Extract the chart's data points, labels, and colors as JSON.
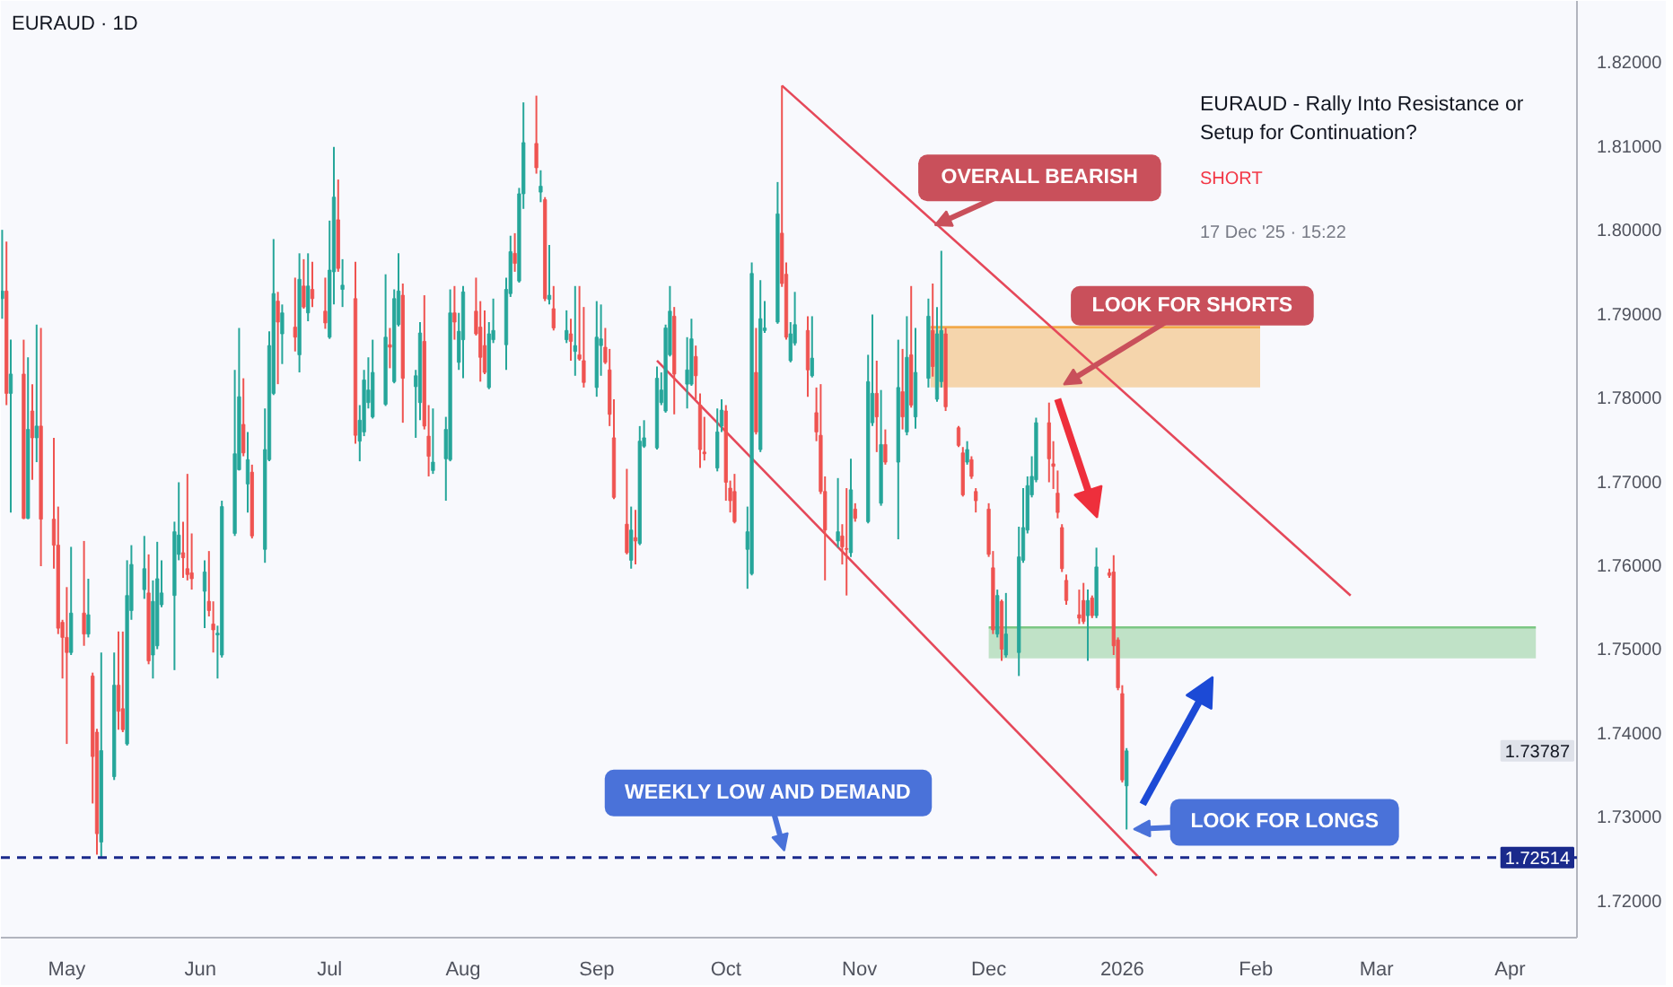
{
  "chart_data": {
    "type": "candlestick",
    "title": "EURAUD · 1D",
    "xlim": [
      "2025-04-15T17:00",
      "2026-04-16T13:00"
    ],
    "ylim": [
      1.7156,
      1.8273
    ],
    "xticks": [
      {
        "value": "2025-05-01",
        "label": "May"
      },
      {
        "value": "2025-06-01",
        "label": "Jun"
      },
      {
        "value": "2025-07-01",
        "label": "Jul"
      },
      {
        "value": "2025-08-01",
        "label": "Aug"
      },
      {
        "value": "2025-09-01",
        "label": "Sep"
      },
      {
        "value": "2025-10-01",
        "label": "Oct"
      },
      {
        "value": "2025-11-01",
        "label": "Nov"
      },
      {
        "value": "2025-12-01",
        "label": "Dec"
      },
      {
        "value": "2026-01-01",
        "label": "2026"
      },
      {
        "value": "2026-02-01",
        "label": "Feb"
      },
      {
        "value": "2026-03-01",
        "label": "Mar"
      },
      {
        "value": "2026-04-01",
        "label": "Apr"
      }
    ],
    "yticks": [
      {
        "value": 1.72,
        "label": "1.72000"
      },
      {
        "value": 1.73,
        "label": "1.73000"
      },
      {
        "value": 1.74,
        "label": "1.74000"
      },
      {
        "value": 1.75,
        "label": "1.75000"
      },
      {
        "value": 1.76,
        "label": "1.76000"
      },
      {
        "value": 1.77,
        "label": "1.77000"
      },
      {
        "value": 1.78,
        "label": "1.78000"
      },
      {
        "value": 1.79,
        "label": "1.79000"
      },
      {
        "value": 1.8,
        "label": "1.80000"
      },
      {
        "value": 1.81,
        "label": "1.81000"
      },
      {
        "value": 1.82,
        "label": "1.82000"
      }
    ],
    "grid": false,
    "series": [
      {
        "type": "line",
        "x": [
          "2025-11-17T12:00",
          "2026-02-02"
        ],
        "values": [
          1.7884,
          1.7884
        ],
        "upper": [
          1.7884,
          1.7884
        ],
        "lower": [
          1.7812,
          1.7812
        ],
        "color": "#f2a94a"
      },
      {
        "type": "line",
        "x": [
          "2025-12-01",
          "2026-04-07"
        ],
        "values": [
          1.7526,
          1.7526
        ],
        "upper": [
          1.7526,
          1.7526
        ],
        "lower": [
          1.7489,
          1.7489
        ],
        "color": "#7cc784"
      },
      {
        "type": "line",
        "x": [
          "2025-10-14",
          "2026-02-23"
        ],
        "values": [
          1.8172,
          1.7564
        ],
        "color": "#e5485a"
      },
      {
        "type": "line",
        "x": [
          "2025-09-15",
          "2026-01-09"
        ],
        "values": [
          1.7844,
          1.723
        ],
        "color": "#e5485a"
      },
      {
        "x": [
          "2025-04-16",
          "2025-04-17",
          "2025-04-18",
          "2025-04-21",
          "2025-04-22",
          "2025-04-23",
          "2025-04-24",
          "2025-04-25",
          "2025-04-28",
          "2025-04-29",
          "2025-04-30",
          "2025-05-01",
          "2025-05-02",
          "2025-05-05",
          "2025-05-06",
          "2025-05-07",
          "2025-05-08",
          "2025-05-09",
          "2025-05-12",
          "2025-05-13",
          "2025-05-14",
          "2025-05-15",
          "2025-05-16",
          "2025-05-19",
          "2025-05-20",
          "2025-05-21",
          "2025-05-22",
          "2025-05-23",
          "2025-05-26",
          "2025-05-27",
          "2025-05-28",
          "2025-05-29",
          "2025-05-30",
          "2025-06-02",
          "2025-06-03",
          "2025-06-04",
          "2025-06-05",
          "2025-06-06",
          "2025-06-09",
          "2025-06-10",
          "2025-06-11",
          "2025-06-12",
          "2025-06-13",
          "2025-06-16",
          "2025-06-17",
          "2025-06-18",
          "2025-06-19",
          "2025-06-20",
          "2025-06-23",
          "2025-06-24",
          "2025-06-25",
          "2025-06-26",
          "2025-06-27",
          "2025-06-30",
          "2025-07-01",
          "2025-07-02",
          "2025-07-03",
          "2025-07-04",
          "2025-07-07",
          "2025-07-08",
          "2025-07-09",
          "2025-07-10",
          "2025-07-11",
          "2025-07-14",
          "2025-07-15",
          "2025-07-16",
          "2025-07-17",
          "2025-07-18",
          "2025-07-21",
          "2025-07-22",
          "2025-07-23",
          "2025-07-24",
          "2025-07-25",
          "2025-07-28",
          "2025-07-29",
          "2025-07-30",
          "2025-07-31",
          "2025-08-01",
          "2025-08-04",
          "2025-08-05",
          "2025-08-06",
          "2025-08-07",
          "2025-08-08",
          "2025-08-11",
          "2025-08-12",
          "2025-08-13",
          "2025-08-14",
          "2025-08-15",
          "2025-08-18",
          "2025-08-19",
          "2025-08-20",
          "2025-08-21",
          "2025-08-22",
          "2025-08-25",
          "2025-08-26",
          "2025-08-27",
          "2025-08-28",
          "2025-08-29",
          "2025-09-01",
          "2025-09-02",
          "2025-09-03",
          "2025-09-04",
          "2025-09-05",
          "2025-09-08",
          "2025-09-09",
          "2025-09-10",
          "2025-09-11",
          "2025-09-12",
          "2025-09-15",
          "2025-09-16",
          "2025-09-17",
          "2025-09-18",
          "2025-09-19",
          "2025-09-22",
          "2025-09-23",
          "2025-09-24",
          "2025-09-25",
          "2025-09-26",
          "2025-09-29",
          "2025-09-30",
          "2025-10-01",
          "2025-10-02",
          "2025-10-03",
          "2025-10-06",
          "2025-10-07",
          "2025-10-08",
          "2025-10-09",
          "2025-10-10",
          "2025-10-13",
          "2025-10-14",
          "2025-10-15",
          "2025-10-16",
          "2025-10-17",
          "2025-10-20",
          "2025-10-21",
          "2025-10-22",
          "2025-10-23",
          "2025-10-24",
          "2025-10-27",
          "2025-10-28",
          "2025-10-29",
          "2025-10-30",
          "2025-10-31",
          "2025-11-03",
          "2025-11-04",
          "2025-11-05",
          "2025-11-06",
          "2025-11-07",
          "2025-11-10",
          "2025-11-11",
          "2025-11-12",
          "2025-11-13",
          "2025-11-14",
          "2025-11-17",
          "2025-11-18",
          "2025-11-19",
          "2025-11-20",
          "2025-11-21",
          "2025-11-24",
          "2025-11-25",
          "2025-11-26",
          "2025-11-27",
          "2025-11-28",
          "2025-12-01",
          "2025-12-02",
          "2025-12-03",
          "2025-12-04",
          "2025-12-05",
          "2025-12-08",
          "2025-12-09",
          "2025-12-10",
          "2025-12-11",
          "2025-12-12",
          "2025-12-15",
          "2025-12-16",
          "2025-12-17",
          "2025-12-18",
          "2025-12-19",
          "2025-12-22",
          "2025-12-23",
          "2025-12-24",
          "2025-12-25",
          "2025-12-26",
          "2025-12-29",
          "2025-12-30",
          "2025-12-31",
          "2026-01-01",
          "2026-01-02"
        ],
        "ohlc": [
          [
            1.7918,
            1.8,
            1.7894,
            1.7927
          ],
          [
            1.7927,
            1.7986,
            1.7791,
            1.7805
          ],
          [
            1.7805,
            1.7869,
            1.7663,
            1.7828
          ],
          [
            1.7828,
            1.7869,
            1.7655,
            1.7656
          ],
          [
            1.7656,
            1.7848,
            1.7655,
            1.7762
          ],
          [
            1.7784,
            1.7816,
            1.7702,
            1.7752
          ],
          [
            1.7752,
            1.7887,
            1.7723,
            1.7766
          ],
          [
            1.7766,
            1.7883,
            1.7599,
            1.7655
          ],
          [
            1.7655,
            1.7752,
            1.7596,
            1.7624
          ],
          [
            1.7624,
            1.767,
            1.7518,
            1.7525
          ],
          [
            1.7532,
            1.7535,
            1.7465,
            1.7514
          ],
          [
            1.7514,
            1.7574,
            1.7387,
            1.7496
          ],
          [
            1.7496,
            1.7622,
            1.7493,
            1.7543
          ],
          [
            1.7543,
            1.7629,
            1.7504,
            1.7518
          ],
          [
            1.7518,
            1.7584,
            1.7514,
            1.7541
          ],
          [
            1.7468,
            1.7472,
            1.7316,
            1.7372
          ],
          [
            1.7401,
            1.7405,
            1.7255,
            1.728
          ],
          [
            1.727,
            1.7496,
            1.72514,
            1.7379
          ],
          [
            1.7348,
            1.7496,
            1.7344,
            1.7457
          ],
          [
            1.7457,
            1.7521,
            1.7404,
            1.7426
          ],
          [
            1.7429,
            1.7521,
            1.7401,
            1.7404
          ],
          [
            1.7387,
            1.7606,
            1.7385,
            1.7564
          ],
          [
            1.7546,
            1.7624,
            1.7535,
            1.7601
          ],
          [
            1.7571,
            1.7635,
            1.756,
            1.7596
          ],
          [
            1.7567,
            1.7613,
            1.7482,
            1.7486
          ],
          [
            1.7493,
            1.7582,
            1.7465,
            1.7557
          ],
          [
            1.7504,
            1.7628,
            1.75,
            1.7584
          ],
          [
            1.7553,
            1.7606,
            1.755,
            1.7567
          ],
          [
            1.7564,
            1.7652,
            1.7475,
            1.764
          ],
          [
            1.7613,
            1.7699,
            1.7606,
            1.7636
          ],
          [
            1.7615,
            1.7652,
            1.7585,
            1.7609
          ],
          [
            1.7596,
            1.7709,
            1.7582,
            1.7589
          ],
          [
            1.7591,
            1.7638,
            1.7571,
            1.7584
          ],
          [
            1.7569,
            1.7606,
            1.7525,
            1.7592
          ],
          [
            1.7557,
            1.7617,
            1.7539,
            1.7546
          ],
          [
            1.753,
            1.7557,
            1.7496,
            1.7523
          ],
          [
            1.7517,
            1.7528,
            1.7465,
            1.7519
          ],
          [
            1.7493,
            1.7677,
            1.749,
            1.767
          ],
          [
            1.7638,
            1.7833,
            1.7635,
            1.7733
          ],
          [
            1.7714,
            1.7883,
            1.7713,
            1.7801
          ],
          [
            1.7768,
            1.7823,
            1.773,
            1.7734
          ],
          [
            1.7697,
            1.7759,
            1.7663,
            1.7726
          ],
          [
            1.7711,
            1.772,
            1.7632,
            1.7635
          ],
          [
            1.7619,
            1.7787,
            1.7603,
            1.7738
          ],
          [
            1.7726,
            1.7879,
            1.7724,
            1.7862
          ],
          [
            1.7805,
            1.7989,
            1.7803,
            1.7924
          ],
          [
            1.7915,
            1.7926,
            1.7816,
            1.789
          ],
          [
            1.7876,
            1.7911,
            1.784,
            1.7901
          ],
          [
            1.7884,
            1.7943,
            1.7855,
            1.7872
          ],
          [
            1.7851,
            1.7972,
            1.783,
            1.7941
          ],
          [
            1.7933,
            1.7965,
            1.7906,
            1.7908
          ],
          [
            1.7901,
            1.7972,
            1.7891,
            1.7933
          ],
          [
            1.7929,
            1.7962,
            1.7908,
            1.7918
          ],
          [
            1.7903,
            1.7943,
            1.7882,
            1.7889
          ],
          [
            1.7872,
            1.8011,
            1.787,
            1.7952
          ],
          [
            1.795,
            1.8099,
            1.7911,
            1.8039
          ],
          [
            1.8012,
            1.806,
            1.795,
            1.7954
          ],
          [
            1.7929,
            1.7965,
            1.7908,
            1.7934
          ],
          [
            1.7918,
            1.7962,
            1.7745,
            1.7755
          ],
          [
            1.7748,
            1.7791,
            1.7724,
            1.7773
          ],
          [
            1.7759,
            1.7833,
            1.7754,
            1.7821
          ],
          [
            1.7794,
            1.7848,
            1.7787,
            1.7809
          ],
          [
            1.7777,
            1.7869,
            1.7775,
            1.783
          ],
          [
            1.7792,
            1.7947,
            1.779,
            1.7872
          ],
          [
            1.7863,
            1.7883,
            1.7835,
            1.786
          ],
          [
            1.7819,
            1.7929,
            1.7817,
            1.7918
          ],
          [
            1.7887,
            1.7972,
            1.7885,
            1.7927
          ],
          [
            1.7922,
            1.7936,
            1.777,
            1.7823
          ],
          [
            1.7813,
            1.7833,
            1.7752,
            1.7826
          ],
          [
            1.7794,
            1.789,
            1.7773,
            1.7877
          ],
          [
            1.7867,
            1.7922,
            1.7762,
            1.7766
          ],
          [
            1.7754,
            1.7791,
            1.7706,
            1.773
          ],
          [
            1.7713,
            1.7787,
            1.7709,
            1.7723
          ],
          [
            1.7727,
            1.7777,
            1.7677,
            1.7762
          ],
          [
            1.7726,
            1.7929,
            1.7724,
            1.7901
          ],
          [
            1.7901,
            1.7933,
            1.7869,
            1.789
          ],
          [
            1.7842,
            1.7901,
            1.7833,
            1.7879
          ],
          [
            1.7869,
            1.7933,
            1.7823,
            1.7926
          ],
          [
            1.7903,
            1.7943,
            1.7874,
            1.7876
          ],
          [
            1.7884,
            1.7915,
            1.7819,
            1.7848
          ],
          [
            1.7862,
            1.7904,
            1.7828,
            1.783
          ],
          [
            1.7812,
            1.789,
            1.781,
            1.7876
          ],
          [
            1.7869,
            1.7918,
            1.7865,
            1.788
          ],
          [
            1.7863,
            1.7943,
            1.7833,
            1.7929
          ],
          [
            1.7924,
            1.7993,
            1.792,
            1.7974
          ],
          [
            1.7972,
            1.7996,
            1.795,
            1.796
          ],
          [
            1.7939,
            1.805,
            1.7937,
            1.8043
          ],
          [
            1.8043,
            1.8152,
            1.8025,
            1.8104
          ],
          [
            1.8103,
            1.816,
            1.8067,
            1.8074
          ],
          [
            1.8045,
            1.8071,
            1.8033,
            1.8052
          ],
          [
            1.8036,
            1.8039,
            1.7915,
            1.7918
          ],
          [
            1.7917,
            1.7982,
            1.7911,
            1.7922
          ],
          [
            1.7906,
            1.7933,
            1.788,
            1.7883
          ],
          [
            1.7869,
            1.7904,
            1.7865,
            1.788
          ],
          [
            1.7876,
            1.7894,
            1.7844,
            1.7867
          ],
          [
            1.7855,
            1.7933,
            1.7826,
            1.7862
          ],
          [
            1.7851,
            1.7933,
            1.7844,
            1.7846
          ],
          [
            1.7844,
            1.7908,
            1.7812,
            1.7818
          ],
          [
            1.7812,
            1.7915,
            1.7801,
            1.7872
          ],
          [
            1.7862,
            1.7911,
            1.7826,
            1.787
          ],
          [
            1.786,
            1.7883,
            1.784,
            1.7842
          ],
          [
            1.7833,
            1.7858,
            1.7766,
            1.778
          ],
          [
            1.7752,
            1.7798,
            1.7679,
            1.7681
          ],
          [
            1.7649,
            1.7715,
            1.7613,
            1.7615
          ],
          [
            1.7606,
            1.767,
            1.7596,
            1.7642
          ],
          [
            1.7633,
            1.7666,
            1.7601,
            1.7629
          ],
          [
            1.7626,
            1.7766,
            1.7624,
            1.7748
          ],
          [
            1.7742,
            1.7773,
            1.774,
            1.7752
          ],
          [
            1.774,
            1.7837,
            1.7738,
            1.7823
          ],
          [
            1.7794,
            1.783,
            1.7791,
            1.7809
          ],
          [
            1.7784,
            1.7887,
            1.7782,
            1.7883
          ],
          [
            1.7851,
            1.7933,
            1.7849,
            1.7903
          ],
          [
            1.7897,
            1.7908,
            1.778,
            1.7828
          ],
          [
            1.7816,
            1.7872,
            1.7787,
            1.7833
          ],
          [
            1.7816,
            1.7894,
            1.7814,
            1.787
          ],
          [
            1.7849,
            1.7862,
            1.7798,
            1.7826
          ],
          [
            1.7791,
            1.7805,
            1.7716,
            1.7738
          ],
          [
            1.7735,
            1.7777,
            1.7725,
            1.7733
          ],
          [
            1.7716,
            1.7787,
            1.7712,
            1.7759
          ],
          [
            1.7766,
            1.7798,
            1.7759,
            1.7785
          ],
          [
            1.7784,
            1.7791,
            1.7677,
            1.7699
          ],
          [
            1.7692,
            1.7701,
            1.7663,
            1.7677
          ],
          [
            1.7688,
            1.7709,
            1.765,
            1.7652
          ],
          [
            1.7619,
            1.767,
            1.7572,
            1.764
          ],
          [
            1.759,
            1.7961,
            1.7588,
            1.7948
          ],
          [
            1.783,
            1.7883,
            1.7756,
            1.7759
          ],
          [
            1.7738,
            1.794,
            1.7735,
            1.7894
          ],
          [
            1.788,
            1.7915,
            1.7877,
            1.7883
          ],
          [
            1.789,
            1.8057,
            1.7888,
            1.8019
          ],
          [
            1.7996,
            1.8172,
            1.7932,
            1.7936
          ],
          [
            1.7947,
            1.7961,
            1.7869,
            1.7872
          ],
          [
            1.7844,
            1.789,
            1.7842,
            1.7876
          ],
          [
            1.7865,
            1.7926,
            1.7862,
            1.7887
          ],
          [
            1.788,
            1.7897,
            1.7801,
            1.7833
          ],
          [
            1.7826,
            1.7897,
            1.7824,
            1.7847
          ],
          [
            1.7782,
            1.7812,
            1.7748,
            1.7759
          ],
          [
            1.7755,
            1.7816,
            1.7685,
            1.7688
          ],
          [
            1.7688,
            1.7706,
            1.7582,
            1.7642
          ],
          [
            1.7629,
            1.7704,
            1.7621,
            1.764
          ],
          [
            1.7635,
            1.7649,
            1.7601,
            1.7622
          ],
          [
            1.762,
            1.7692,
            1.7564,
            1.7619
          ],
          [
            1.7615,
            1.7727,
            1.761,
            1.769
          ],
          [
            1.7667,
            1.7674,
            1.7652,
            1.7656
          ],
          [
            1.7652,
            1.7851,
            1.765,
            1.7819
          ],
          [
            1.777,
            1.7899,
            1.7766,
            1.7805
          ],
          [
            1.7805,
            1.7844,
            1.7735,
            1.7777
          ],
          [
            1.7674,
            1.7809,
            1.7671,
            1.7744
          ],
          [
            1.7744,
            1.7762,
            1.772,
            1.7723
          ],
          [
            1.7723,
            1.7869,
            1.7631,
            1.7812
          ],
          [
            1.7807,
            1.7858,
            1.7762,
            1.7777
          ],
          [
            1.7759,
            1.7897,
            1.7755,
            1.7848
          ],
          [
            1.7851,
            1.7933,
            1.7788,
            1.7791
          ],
          [
            1.7777,
            1.7883,
            1.7763,
            1.783
          ],
          [
            1.7823,
            1.7918,
            1.7812,
            1.7897
          ],
          [
            1.788,
            1.7936,
            1.7825,
            1.7837
          ],
          [
            1.7798,
            1.7908,
            1.7795,
            1.7876
          ],
          [
            1.7819,
            1.7975,
            1.7812,
            1.788
          ],
          [
            1.7876,
            1.7883,
            1.7784,
            1.7789
          ],
          [
            1.7764,
            1.7766,
            1.7741,
            1.7743
          ],
          [
            1.7734,
            1.7741,
            1.7682,
            1.7684
          ],
          [
            1.7723,
            1.7748,
            1.772,
            1.7738
          ],
          [
            1.7726,
            1.773,
            1.7703,
            1.7706
          ],
          [
            1.7688,
            1.7692,
            1.7663,
            1.7677
          ],
          [
            1.7667,
            1.7674,
            1.761,
            1.7613
          ],
          [
            1.7597,
            1.7617,
            1.7518,
            1.7523
          ],
          [
            1.7518,
            1.7571,
            1.7514,
            1.7564
          ],
          [
            1.7557,
            1.7559,
            1.7486,
            1.75
          ],
          [
            1.7493,
            1.7567,
            1.749,
            1.7518
          ],
          [
            1.7496,
            1.7646,
            1.7468,
            1.761
          ],
          [
            1.7606,
            1.7692,
            1.7603,
            1.7645
          ],
          [
            1.7642,
            1.7706,
            1.7638,
            1.7695
          ],
          [
            1.7684,
            1.773,
            1.7681,
            1.7706
          ],
          [
            1.7702,
            1.7776,
            1.7699,
            1.777
          ],
          [
            1.777,
            1.7794,
            1.7699,
            1.7727
          ],
          [
            1.7721,
            1.7748,
            1.7691,
            1.7718
          ],
          [
            1.7686,
            1.7713,
            1.7656,
            1.7663
          ],
          [
            1.7645,
            1.7649,
            1.7592,
            1.7596
          ],
          [
            1.7582,
            1.7589,
            1.7553,
            1.7558
          ],
          [
            1.7541,
            1.7571,
            1.753,
            1.7537
          ],
          [
            1.7558,
            1.7579,
            1.753,
            1.7533
          ],
          [
            1.754,
            1.7571,
            1.7486,
            1.7558
          ],
          [
            1.7561,
            1.7564,
            1.7537,
            1.754
          ],
          [
            1.754,
            1.7621,
            1.7537,
            1.7598
          ],
          [
            1.7591,
            1.7596,
            1.7585,
            1.7588
          ],
          [
            1.7592,
            1.7612,
            1.7493,
            1.7504
          ],
          [
            1.7511,
            1.7514,
            1.7451,
            1.7454
          ],
          [
            1.7447,
            1.7457,
            1.7341,
            1.7344
          ],
          [
            1.7337,
            1.7382,
            1.7285,
            1.73787
          ]
        ],
        "colors": [
          "#26a69a",
          "#ef5350",
          "#26a69a",
          "#ef5350",
          "#26a69a",
          "#ef5350",
          "#26a69a",
          "#ef5350",
          "#ef5350",
          "#ef5350",
          "#ef5350",
          "#ef5350",
          "#26a69a",
          "#ef5350",
          "#26a69a",
          "#ef5350",
          "#ef5350",
          "#26a69a",
          "#26a69a",
          "#ef5350",
          "#ef5350",
          "#26a69a",
          "#26a69a",
          "#26a69a",
          "#ef5350",
          "#26a69a",
          "#26a69a",
          "#26a69a",
          "#26a69a",
          "#26a69a",
          "#ef5350",
          "#ef5350",
          "#ef5350",
          "#26a69a",
          "#ef5350",
          "#ef5350",
          "#26a69a",
          "#26a69a",
          "#26a69a",
          "#26a69a",
          "#ef5350",
          "#26a69a",
          "#ef5350",
          "#26a69a",
          "#26a69a",
          "#26a69a",
          "#ef5350",
          "#26a69a",
          "#ef5350",
          "#26a69a",
          "#ef5350",
          "#26a69a",
          "#ef5350",
          "#ef5350",
          "#26a69a",
          "#26a69a",
          "#ef5350",
          "#26a69a",
          "#ef5350",
          "#26a69a",
          "#26a69a",
          "#26a69a",
          "#26a69a",
          "#26a69a",
          "#ef5350",
          "#26a69a",
          "#26a69a",
          "#ef5350",
          "#26a69a",
          "#26a69a",
          "#ef5350",
          "#ef5350",
          "#26a69a",
          "#26a69a",
          "#26a69a",
          "#ef5350",
          "#26a69a",
          "#26a69a",
          "#ef5350",
          "#ef5350",
          "#ef5350",
          "#26a69a",
          "#26a69a",
          "#26a69a",
          "#26a69a",
          "#ef5350",
          "#26a69a",
          "#26a69a",
          "#ef5350",
          "#26a69a",
          "#ef5350",
          "#26a69a",
          "#ef5350",
          "#26a69a",
          "#ef5350",
          "#26a69a",
          "#ef5350",
          "#ef5350",
          "#26a69a",
          "#26a69a",
          "#ef5350",
          "#ef5350",
          "#ef5350",
          "#ef5350",
          "#26a69a",
          "#ef5350",
          "#26a69a",
          "#26a69a",
          "#26a69a",
          "#26a69a",
          "#26a69a",
          "#26a69a",
          "#ef5350",
          "#26a69a",
          "#26a69a",
          "#ef5350",
          "#ef5350",
          "#ef5350",
          "#26a69a",
          "#26a69a",
          "#ef5350",
          "#ef5350",
          "#ef5350",
          "#26a69a",
          "#26a69a",
          "#ef5350",
          "#26a69a",
          "#26a69a",
          "#26a69a",
          "#ef5350",
          "#ef5350",
          "#26a69a",
          "#26a69a",
          "#ef5350",
          "#26a69a",
          "#ef5350",
          "#ef5350",
          "#ef5350",
          "#26a69a",
          "#ef5350",
          "#ef5350",
          "#26a69a",
          "#ef5350",
          "#26a69a",
          "#26a69a",
          "#ef5350",
          "#26a69a",
          "#ef5350",
          "#26a69a",
          "#ef5350",
          "#26a69a",
          "#ef5350",
          "#26a69a",
          "#26a69a",
          "#ef5350",
          "#26a69a",
          "#26a69a",
          "#ef5350",
          "#ef5350",
          "#ef5350",
          "#26a69a",
          "#ef5350",
          "#ef5350",
          "#ef5350",
          "#ef5350",
          "#26a69a",
          "#ef5350",
          "#26a69a",
          "#26a69a",
          "#26a69a",
          "#26a69a",
          "#26a69a",
          "#26a69a",
          "#ef5350",
          "#ef5350",
          "#ef5350",
          "#ef5350",
          "#ef5350",
          "#ef5350",
          "#ef5350",
          "#26a69a",
          "#ef5350",
          "#26a69a",
          "#ef5350",
          "#ef5350",
          "#ef5350",
          "#ef5350",
          "#26a69a"
        ]
      }
    ],
    "ref_lines": [
      {
        "axis": "y",
        "value": 1.72514,
        "label": "1.72514",
        "color": "#1a2a8c",
        "line_style": "dashed"
      }
    ],
    "annotations": [
      {
        "text": "OVERALL BEARISH",
        "x": "2025-11-17",
        "y": 1.8002
      },
      {
        "text": "LOOK FOR SHORTS",
        "x": "2025-12-17",
        "y": 1.7811
      },
      {
        "text": "WEEKLY LOW AND DEMAND",
        "x": "2025-10-15",
        "y": 1.72514
      },
      {
        "text": "LOOK FOR LONGS",
        "x": "2026-01-02",
        "y": 1.7285
      },
      "EURAUD - Rally Into Resistance or Setup for Continuation?",
      "SHORT",
      "17 Dec '25 · 15:22",
      "1.73787"
    ]
  }
}
